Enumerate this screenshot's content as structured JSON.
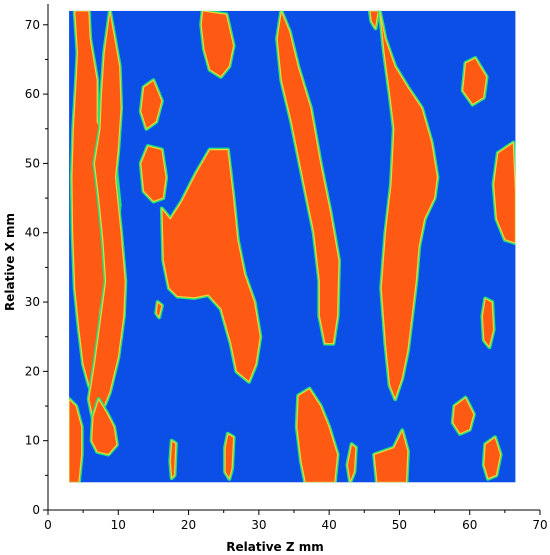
{
  "chart_data": {
    "type": "heatmap",
    "title": "",
    "xlabel": "Relative Z mm",
    "ylabel": "Relative X mm",
    "xlim": [
      0,
      70
    ],
    "ylim": [
      0,
      73
    ],
    "xticks": [
      0,
      10,
      20,
      30,
      40,
      50,
      60,
      70
    ],
    "yticks": [
      0,
      10,
      20,
      30,
      40,
      50,
      60,
      70
    ],
    "grid": false,
    "legend": "none",
    "data_extent": {
      "x": [
        3,
        66.5
      ],
      "y": [
        4,
        72
      ]
    },
    "colors": {
      "background_field": "#0b4fe6",
      "highlight": "#ff5a14",
      "rim": "#22e07a",
      "rim_inner": "#f2d23c",
      "axis": "#000000"
    },
    "regions": [
      {
        "name": "left-band",
        "polygon": [
          [
            3.8,
            72
          ],
          [
            4.2,
            66
          ],
          [
            4.0,
            62
          ],
          [
            3.6,
            55
          ],
          [
            3.4,
            48
          ],
          [
            3.5,
            40
          ],
          [
            3.8,
            32
          ],
          [
            4.4,
            26
          ],
          [
            5.0,
            21
          ],
          [
            5.8,
            18
          ],
          [
            6.6,
            16
          ],
          [
            7.2,
            18
          ],
          [
            7.0,
            24
          ],
          [
            7.4,
            29
          ],
          [
            8.6,
            33
          ],
          [
            9.6,
            38
          ],
          [
            10.2,
            44
          ],
          [
            9.6,
            50
          ],
          [
            8.4,
            53
          ],
          [
            7.0,
            56
          ],
          [
            7.0,
            62
          ],
          [
            6.0,
            68
          ],
          [
            5.8,
            72
          ]
        ]
      },
      {
        "name": "band-z10",
        "polygon": [
          [
            8.8,
            72
          ],
          [
            10.2,
            64
          ],
          [
            10.4,
            58
          ],
          [
            10.0,
            52
          ],
          [
            9.6,
            48
          ],
          [
            10.4,
            40
          ],
          [
            11.0,
            33
          ],
          [
            10.8,
            28
          ],
          [
            10.0,
            22
          ],
          [
            8.8,
            17
          ],
          [
            7.6,
            14
          ],
          [
            6.4,
            13
          ],
          [
            5.8,
            16
          ],
          [
            6.6,
            21
          ],
          [
            7.4,
            27
          ],
          [
            8.2,
            33
          ],
          [
            7.8,
            39
          ],
          [
            7.2,
            45
          ],
          [
            6.6,
            50
          ],
          [
            7.4,
            55
          ],
          [
            7.6,
            60
          ],
          [
            8.0,
            66
          ]
        ]
      },
      {
        "name": "blob-z7-y12",
        "polygon": [
          [
            7.2,
            16
          ],
          [
            8.4,
            14
          ],
          [
            9.4,
            12
          ],
          [
            9.8,
            9.4
          ],
          [
            8.6,
            8.0
          ],
          [
            7.0,
            8.4
          ],
          [
            6.2,
            10
          ],
          [
            6.4,
            13.5
          ]
        ]
      },
      {
        "name": "blob-z4-y12",
        "polygon": [
          [
            3.0,
            16
          ],
          [
            4.0,
            15
          ],
          [
            4.8,
            12
          ],
          [
            4.8,
            8
          ],
          [
            4.4,
            4
          ],
          [
            3.0,
            4
          ]
        ]
      },
      {
        "name": "blob-z14-y58",
        "polygon": [
          [
            13.6,
            61
          ],
          [
            15.0,
            62
          ],
          [
            16.2,
            59
          ],
          [
            15.4,
            56
          ],
          [
            14.0,
            55
          ],
          [
            13.2,
            57.5
          ]
        ]
      },
      {
        "name": "blob-z14-y49",
        "polygon": [
          [
            14.2,
            52.5
          ],
          [
            16.2,
            52.0
          ],
          [
            16.8,
            48.0
          ],
          [
            16.4,
            45.0
          ],
          [
            15.0,
            44.5
          ],
          [
            13.6,
            46
          ],
          [
            13.2,
            50
          ]
        ]
      },
      {
        "name": "blob-z16-y29",
        "polygon": [
          [
            15.6,
            30
          ],
          [
            16.2,
            29.5
          ],
          [
            15.8,
            27.8
          ],
          [
            15.4,
            28.4
          ]
        ]
      },
      {
        "name": "blob-z18-y7",
        "polygon": [
          [
            17.6,
            10
          ],
          [
            18.2,
            9.6
          ],
          [
            18.0,
            5
          ],
          [
            17.6,
            4.6
          ],
          [
            17.4,
            7
          ]
        ]
      },
      {
        "name": "blob-z24-y36",
        "polygon": [
          [
            16.2,
            43.5
          ],
          [
            17.4,
            42.0
          ],
          [
            19.0,
            44.5
          ],
          [
            21.0,
            48.5
          ],
          [
            23.0,
            52.0
          ],
          [
            25.6,
            52.0
          ],
          [
            26.4,
            45.0
          ],
          [
            27.0,
            39.0
          ],
          [
            28.0,
            34.0
          ],
          [
            29.4,
            30.0
          ],
          [
            30.2,
            25.0
          ],
          [
            29.6,
            21.0
          ],
          [
            28.6,
            18.5
          ],
          [
            26.8,
            20.0
          ],
          [
            26.0,
            24.0
          ],
          [
            24.6,
            29.0
          ],
          [
            22.8,
            31.0
          ],
          [
            20.8,
            30.6
          ],
          [
            18.4,
            30.8
          ],
          [
            17.2,
            32.0
          ],
          [
            16.4,
            36.0
          ]
        ]
      },
      {
        "name": "blob-z22-y69",
        "polygon": [
          [
            22.0,
            72.0
          ],
          [
            25.4,
            71.5
          ],
          [
            26.4,
            67.0
          ],
          [
            25.8,
            64.0
          ],
          [
            24.6,
            62.5
          ],
          [
            23.0,
            63.5
          ],
          [
            22.2,
            66.5
          ],
          [
            21.8,
            70.0
          ]
        ]
      },
      {
        "name": "blob-z26-y7",
        "polygon": [
          [
            25.6,
            11.0
          ],
          [
            26.4,
            10.5
          ],
          [
            26.2,
            6.0
          ],
          [
            25.8,
            4.5
          ],
          [
            25.2,
            5.5
          ],
          [
            25.2,
            9.0
          ]
        ]
      },
      {
        "name": "band-z38",
        "polygon": [
          [
            33.2,
            72
          ],
          [
            34.4,
            69
          ],
          [
            35.6,
            64
          ],
          [
            37.4,
            58
          ],
          [
            38.8,
            50
          ],
          [
            40.2,
            43
          ],
          [
            41.4,
            36
          ],
          [
            41.2,
            28
          ],
          [
            40.6,
            24
          ],
          [
            39.4,
            24
          ],
          [
            38.6,
            28
          ],
          [
            38.6,
            33
          ],
          [
            37.8,
            40
          ],
          [
            36.6,
            46
          ],
          [
            35.6,
            51
          ],
          [
            34.6,
            56
          ],
          [
            33.2,
            62
          ],
          [
            32.6,
            68
          ]
        ]
      },
      {
        "name": "blob-z38-y11",
        "polygon": [
          [
            35.6,
            16.5
          ],
          [
            37.2,
            17.5
          ],
          [
            38.8,
            15.0
          ],
          [
            40.0,
            12.0
          ],
          [
            41.2,
            8.0
          ],
          [
            40.8,
            4.0
          ],
          [
            36.6,
            4.0
          ],
          [
            36.0,
            7.0
          ],
          [
            35.4,
            12.0
          ]
        ]
      },
      {
        "name": "blob-z43-y7",
        "polygon": [
          [
            43.2,
            9.5
          ],
          [
            43.8,
            9.0
          ],
          [
            43.6,
            5.5
          ],
          [
            43.0,
            4.0
          ],
          [
            42.6,
            6.5
          ]
        ]
      },
      {
        "name": "top-nub-z46",
        "polygon": [
          [
            45.8,
            72
          ],
          [
            47.0,
            72
          ],
          [
            46.6,
            69.5
          ],
          [
            46.0,
            70.5
          ]
        ]
      },
      {
        "name": "band-z51",
        "polygon": [
          [
            47.2,
            72
          ],
          [
            48.0,
            68
          ],
          [
            49.4,
            64
          ],
          [
            51.2,
            61
          ],
          [
            53.2,
            58
          ],
          [
            54.6,
            53
          ],
          [
            55.4,
            48
          ],
          [
            55.0,
            45
          ],
          [
            53.6,
            42
          ],
          [
            52.8,
            38
          ],
          [
            52.4,
            33
          ],
          [
            51.8,
            28
          ],
          [
            51.2,
            23
          ],
          [
            50.4,
            19
          ],
          [
            49.4,
            16
          ],
          [
            48.6,
            18
          ],
          [
            48.0,
            24
          ],
          [
            47.4,
            32
          ],
          [
            48.0,
            40
          ],
          [
            48.8,
            47
          ],
          [
            49.2,
            55
          ],
          [
            48.6,
            60
          ],
          [
            47.8,
            66
          ]
        ]
      },
      {
        "name": "blob-z48-y6",
        "polygon": [
          [
            46.4,
            8.0
          ],
          [
            49.2,
            9.0
          ],
          [
            50.4,
            11.5
          ],
          [
            51.2,
            8.5
          ],
          [
            51.0,
            4.0
          ],
          [
            46.8,
            4.0
          ]
        ]
      },
      {
        "name": "blob-z61-y62",
        "polygon": [
          [
            59.4,
            64.5
          ],
          [
            60.8,
            65.2
          ],
          [
            62.4,
            62.5
          ],
          [
            62.0,
            59.5
          ],
          [
            60.4,
            58.5
          ],
          [
            59.0,
            60.5
          ]
        ]
      },
      {
        "name": "blob-z64-y44",
        "polygon": [
          [
            64.0,
            51.5
          ],
          [
            66.2,
            53.0
          ],
          [
            66.5,
            46
          ],
          [
            66.5,
            38.5
          ],
          [
            65.0,
            39.0
          ],
          [
            63.8,
            42.0
          ],
          [
            63.4,
            47.0
          ]
        ]
      },
      {
        "name": "blob-z62-y27",
        "polygon": [
          [
            62.2,
            30.5
          ],
          [
            63.2,
            30.0
          ],
          [
            63.4,
            26.0
          ],
          [
            62.8,
            23.5
          ],
          [
            62.0,
            24.5
          ],
          [
            61.8,
            28.0
          ]
        ]
      },
      {
        "name": "blob-z59-y13",
        "polygon": [
          [
            57.8,
            15.0
          ],
          [
            59.4,
            16.2
          ],
          [
            60.6,
            13.8
          ],
          [
            60.0,
            11.6
          ],
          [
            58.6,
            11.0
          ],
          [
            57.6,
            12.6
          ]
        ]
      },
      {
        "name": "blob-z63-y8",
        "polygon": [
          [
            62.2,
            9.5
          ],
          [
            63.6,
            10.5
          ],
          [
            64.4,
            8.0
          ],
          [
            63.8,
            5.0
          ],
          [
            62.6,
            4.5
          ],
          [
            62.0,
            6.5
          ]
        ]
      }
    ]
  }
}
